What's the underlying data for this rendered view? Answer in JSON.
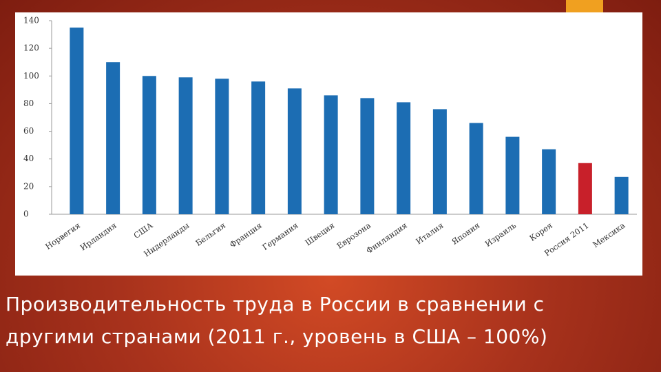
{
  "chart_data": {
    "type": "bar",
    "title": "Производительность труда в России в сравнении с другими странами (2011 г., уровень в США – 100%)",
    "categories": [
      "Норвегия",
      "Ирландия",
      "США",
      "Нидерланды",
      "Бельгия",
      "Франция",
      "Германия",
      "Швеция",
      "Еврозона",
      "Финляндия",
      "Италия",
      "Япония",
      "Израиль",
      "Корея",
      "Россия 2011",
      "Мексика"
    ],
    "values": [
      135,
      110,
      100,
      99,
      98,
      96,
      91,
      86,
      84,
      81,
      76,
      66,
      56,
      47,
      37,
      27
    ],
    "colors": [
      "#1c6db3",
      "#1c6db3",
      "#1c6db3",
      "#1c6db3",
      "#1c6db3",
      "#1c6db3",
      "#1c6db3",
      "#1c6db3",
      "#1c6db3",
      "#1c6db3",
      "#1c6db3",
      "#1c6db3",
      "#1c6db3",
      "#1c6db3",
      "#c8202a",
      "#1c6db3"
    ],
    "ylim": [
      0,
      140
    ],
    "yticks": [
      0,
      20,
      40,
      60,
      80,
      100,
      120,
      140
    ],
    "grid": false
  }
}
